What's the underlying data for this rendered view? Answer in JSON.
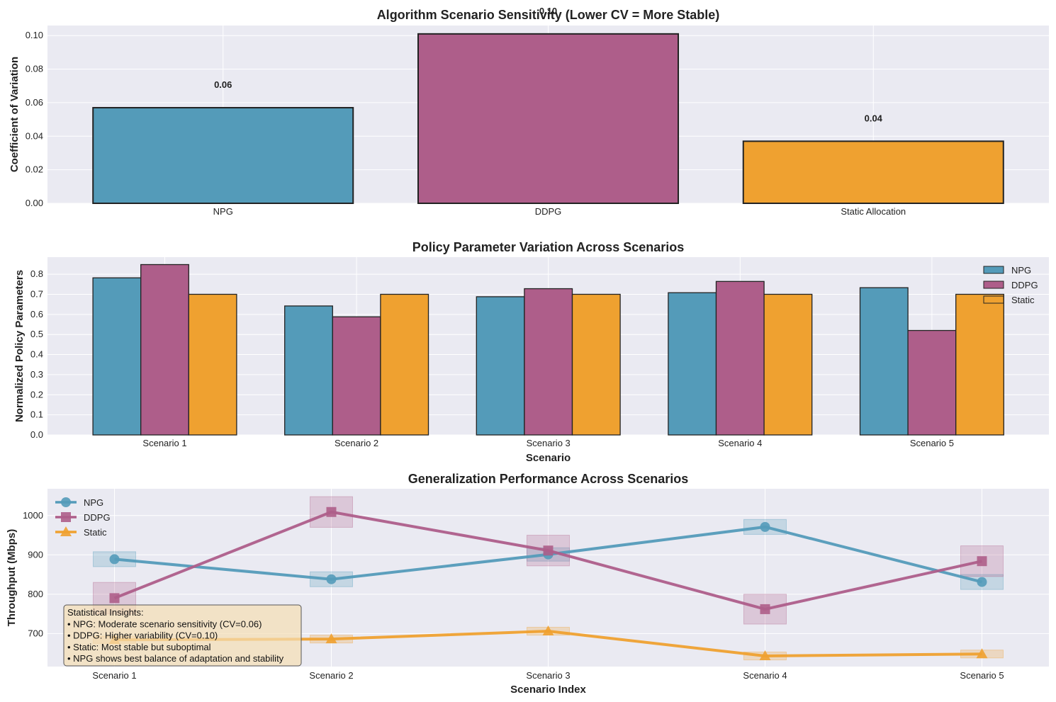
{
  "chart_data": [
    {
      "type": "bar",
      "title": "Algorithm Scenario Sensitivity (Lower CV = More Stable)",
      "xlabel": "",
      "ylabel": "Coefficient of Variation",
      "categories": [
        "NPG",
        "DDPG",
        "Static Allocation"
      ],
      "values": [
        0.057,
        0.101,
        0.037
      ],
      "data_labels": [
        "0.06",
        "0.10",
        "0.04"
      ],
      "colors": [
        "#549bb9",
        "#ae5e8a",
        "#efa130"
      ],
      "ylim": [
        0,
        0.106
      ],
      "yticks": [
        0.0,
        0.02,
        0.04,
        0.06,
        0.08,
        0.1
      ],
      "ytick_labels": [
        "0.00",
        "0.02",
        "0.04",
        "0.06",
        "0.08",
        "0.10"
      ],
      "grid": true
    },
    {
      "type": "bar",
      "title": "Policy Parameter Variation Across Scenarios",
      "xlabel": "Scenario",
      "ylabel": "Normalized Policy Parameters",
      "categories": [
        "Scenario 1",
        "Scenario 2",
        "Scenario 3",
        "Scenario 4",
        "Scenario 5"
      ],
      "series": [
        {
          "name": "NPG",
          "color": "#549bb9",
          "values": [
            0.782,
            0.642,
            0.688,
            0.708,
            0.733
          ]
        },
        {
          "name": "DDPG",
          "color": "#ae5e8a",
          "values": [
            0.848,
            0.588,
            0.728,
            0.764,
            0.52
          ]
        },
        {
          "name": "Static",
          "color": "#efa130",
          "values": [
            0.7,
            0.7,
            0.7,
            0.7,
            0.7
          ]
        }
      ],
      "ylim": [
        0,
        0.885
      ],
      "yticks": [
        0.0,
        0.1,
        0.2,
        0.3,
        0.4,
        0.5,
        0.6,
        0.7,
        0.8
      ],
      "ytick_labels": [
        "0.0",
        "0.1",
        "0.2",
        "0.3",
        "0.4",
        "0.5",
        "0.6",
        "0.7",
        "0.8"
      ],
      "legend": "top-right",
      "grid": true
    },
    {
      "type": "line",
      "title": "Generalization Performance Across Scenarios",
      "xlabel": "Scenario Index",
      "ylabel": "Throughput (Mbps)",
      "categories": [
        "Scenario 1",
        "Scenario 2",
        "Scenario 3",
        "Scenario 4",
        "Scenario 5"
      ],
      "series": [
        {
          "name": "NPG",
          "color": "#549bb9",
          "marker": "circle",
          "values": [
            889,
            838,
            901,
            971,
            831
          ],
          "error": [
            19,
            19,
            17,
            19,
            19
          ]
        },
        {
          "name": "DDPG",
          "color": "#ae5e8a",
          "marker": "square",
          "values": [
            790,
            1009,
            911,
            762,
            884
          ],
          "error": [
            40,
            39,
            39,
            38,
            39
          ]
        },
        {
          "name": "Static",
          "color": "#efa130",
          "marker": "triangle",
          "values": [
            684,
            686,
            706,
            643,
            648
          ],
          "error": [
            9,
            10,
            10,
            10,
            10
          ]
        }
      ],
      "ylim": [
        616,
        1068
      ],
      "yticks": [
        700,
        800,
        900,
        1000
      ],
      "ytick_labels": [
        "700",
        "800",
        "900",
        "1000"
      ],
      "legend": "top-left",
      "grid": true,
      "annotation": [
        "Statistical Insights:",
        "• NPG: Moderate scenario sensitivity (CV=0.06)",
        "• DDPG: Higher variability (CV=0.10)",
        "• Static: Most stable but suboptimal",
        "• NPG shows best balance of adaptation and stability"
      ]
    }
  ]
}
